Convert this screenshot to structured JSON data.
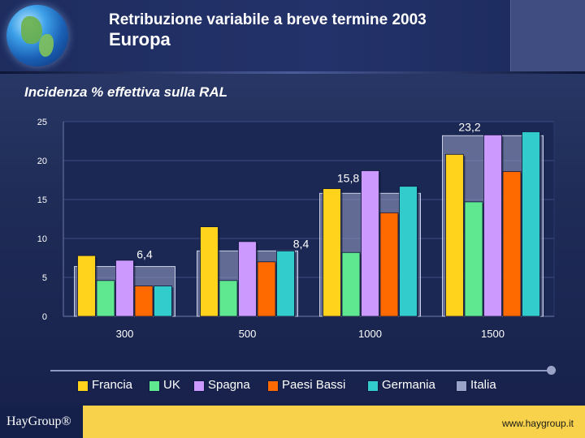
{
  "header": {
    "title_line1": "Retribuzione variabile a breve termine 2003",
    "title_line2": "Europa"
  },
  "subtitle": "Incidenza % effettiva sulla RAL",
  "chart_data": {
    "type": "bar",
    "title": "Incidenza % effettiva sulla RAL",
    "categories": [
      "300",
      "500",
      "1000",
      "1500"
    ],
    "ylim": [
      0,
      25
    ],
    "yticks": [
      0,
      5,
      10,
      15,
      20,
      25
    ],
    "series": [
      {
        "name": "Francia",
        "color": "#ffd21c",
        "values": [
          7.8,
          11.5,
          16.4,
          20.8
        ]
      },
      {
        "name": "UK",
        "color": "#5fe88f",
        "values": [
          4.6,
          4.6,
          8.2,
          14.7
        ]
      },
      {
        "name": "Spagna",
        "color": "#cc99ff",
        "values": [
          7.2,
          9.6,
          18.7,
          23.3
        ]
      },
      {
        "name": "Paesi Bassi",
        "color": "#ff6a00",
        "values": [
          3.9,
          7.0,
          13.3,
          18.6
        ]
      },
      {
        "name": "Germania",
        "color": "#33cccc",
        "values": [
          3.9,
          8.4,
          16.7,
          23.7
        ]
      }
    ],
    "reference": {
      "name": "Italia",
      "color": "#9aa3c8",
      "values": [
        6.4,
        8.4,
        15.8,
        23.2
      ],
      "labels": [
        "6,4",
        "8,4",
        "15,8",
        "23,2"
      ]
    }
  },
  "footer": {
    "logo": "HayGroup®",
    "url": "www.haygroup.it"
  }
}
